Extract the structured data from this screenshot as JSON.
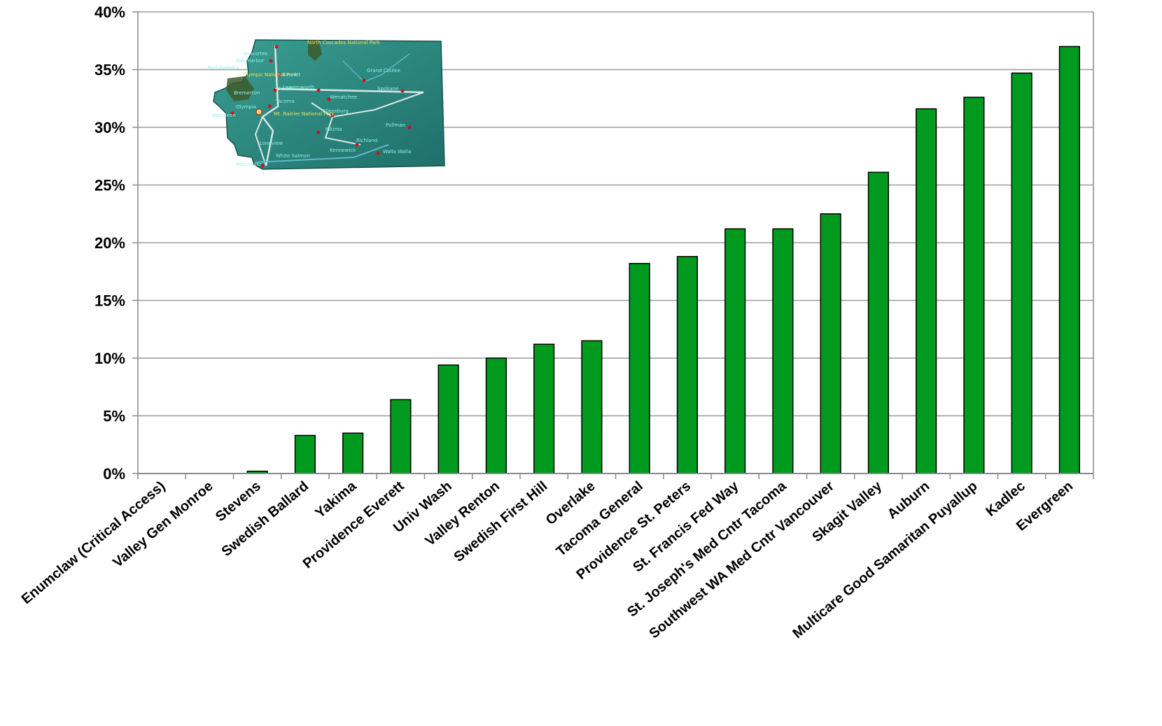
{
  "chart_data": {
    "type": "bar",
    "categories": [
      "Enumclaw (Critical Access)",
      "Valley Gen Monroe",
      "Stevens",
      "Swedish Ballard",
      "Yakima",
      "Providence Everett",
      "Univ Wash",
      "Valley Renton",
      "Swedish First Hill",
      "Overlake",
      "Tacoma General",
      "Providence St. Peters",
      "St. Francis Fed Way",
      "St. Joseph's Med Cntr Tacoma",
      "Southwest WA Med Cntr Vancouver",
      "Skagit Valley",
      "Auburn",
      "Multicare Good Samaritan Puyallup",
      "Kadlec",
      "Evergreen"
    ],
    "values": [
      0,
      0,
      0.2,
      3.3,
      3.5,
      6.4,
      9.4,
      10.0,
      11.2,
      11.5,
      18.2,
      18.8,
      21.2,
      21.2,
      22.5,
      26.1,
      31.6,
      32.6,
      34.7,
      37.0
    ],
    "ylim": [
      0,
      40
    ],
    "yticks": [
      0,
      5,
      10,
      15,
      20,
      25,
      30,
      35,
      40
    ],
    "ytick_labels": [
      "0%",
      "5%",
      "10%",
      "15%",
      "20%",
      "25%",
      "30%",
      "35%",
      "40%"
    ],
    "title": "",
    "xlabel": "",
    "ylabel": "",
    "grid": true,
    "legend": "none",
    "bar_color": "#009a1e",
    "bar_edge_color": "#000000",
    "grid_color": "#9a9a9a"
  },
  "inset_map": {
    "description_icon": "washington-state-map-icon",
    "labels": [
      "Anacortes",
      "Oak Harbor",
      "Port Angeles",
      "Olympic National Park",
      "Bremerton",
      "Olympia",
      "Aberdeen",
      "Longview",
      "Vancouver",
      "White Salmon",
      "Everett",
      "Seattle",
      "Tacoma",
      "Mt. Rainier National Park",
      "Leavenworth",
      "Wenatchee",
      "Ellensburg",
      "Yakima",
      "Richland",
      "Kennewick",
      "Walla Walla",
      "Pullman",
      "Spokane",
      "Grand Coulee",
      "North Cascades National Park"
    ],
    "colors": {
      "land": "#2e8f86",
      "text_primary": "#8ff0e6",
      "text_secondary": "#f5e05a"
    }
  }
}
